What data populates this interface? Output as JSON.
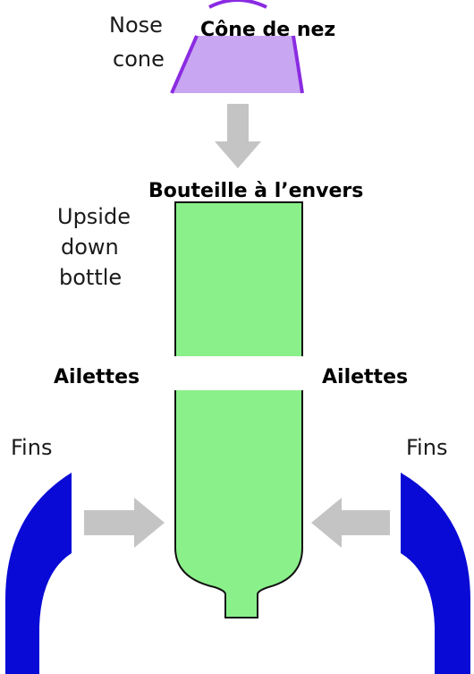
{
  "labels": {
    "nose_cone_en_line1": "Nose",
    "nose_cone_en_line2": "cone",
    "nose_cone_fr": "Cône de nez",
    "bottle_en_line1": "Upside",
    "bottle_en_line2": "down",
    "bottle_en_line3": "bottle",
    "bottle_fr": "Bouteille à l’envers",
    "fins_left_fr": "Ailettes",
    "fins_right_fr": "Ailettes",
    "fins_left_en": "Fins",
    "fins_right_en": "Fins"
  },
  "colors": {
    "nose_cone_fill": "#c8a6f2",
    "nose_cone_outline": "#8a2be2",
    "bottle_fill": "#8af08a",
    "bottle_outline": "#111111",
    "fin_fill": "#0a0ad6",
    "arrow_fill": "#c4c4c4"
  }
}
